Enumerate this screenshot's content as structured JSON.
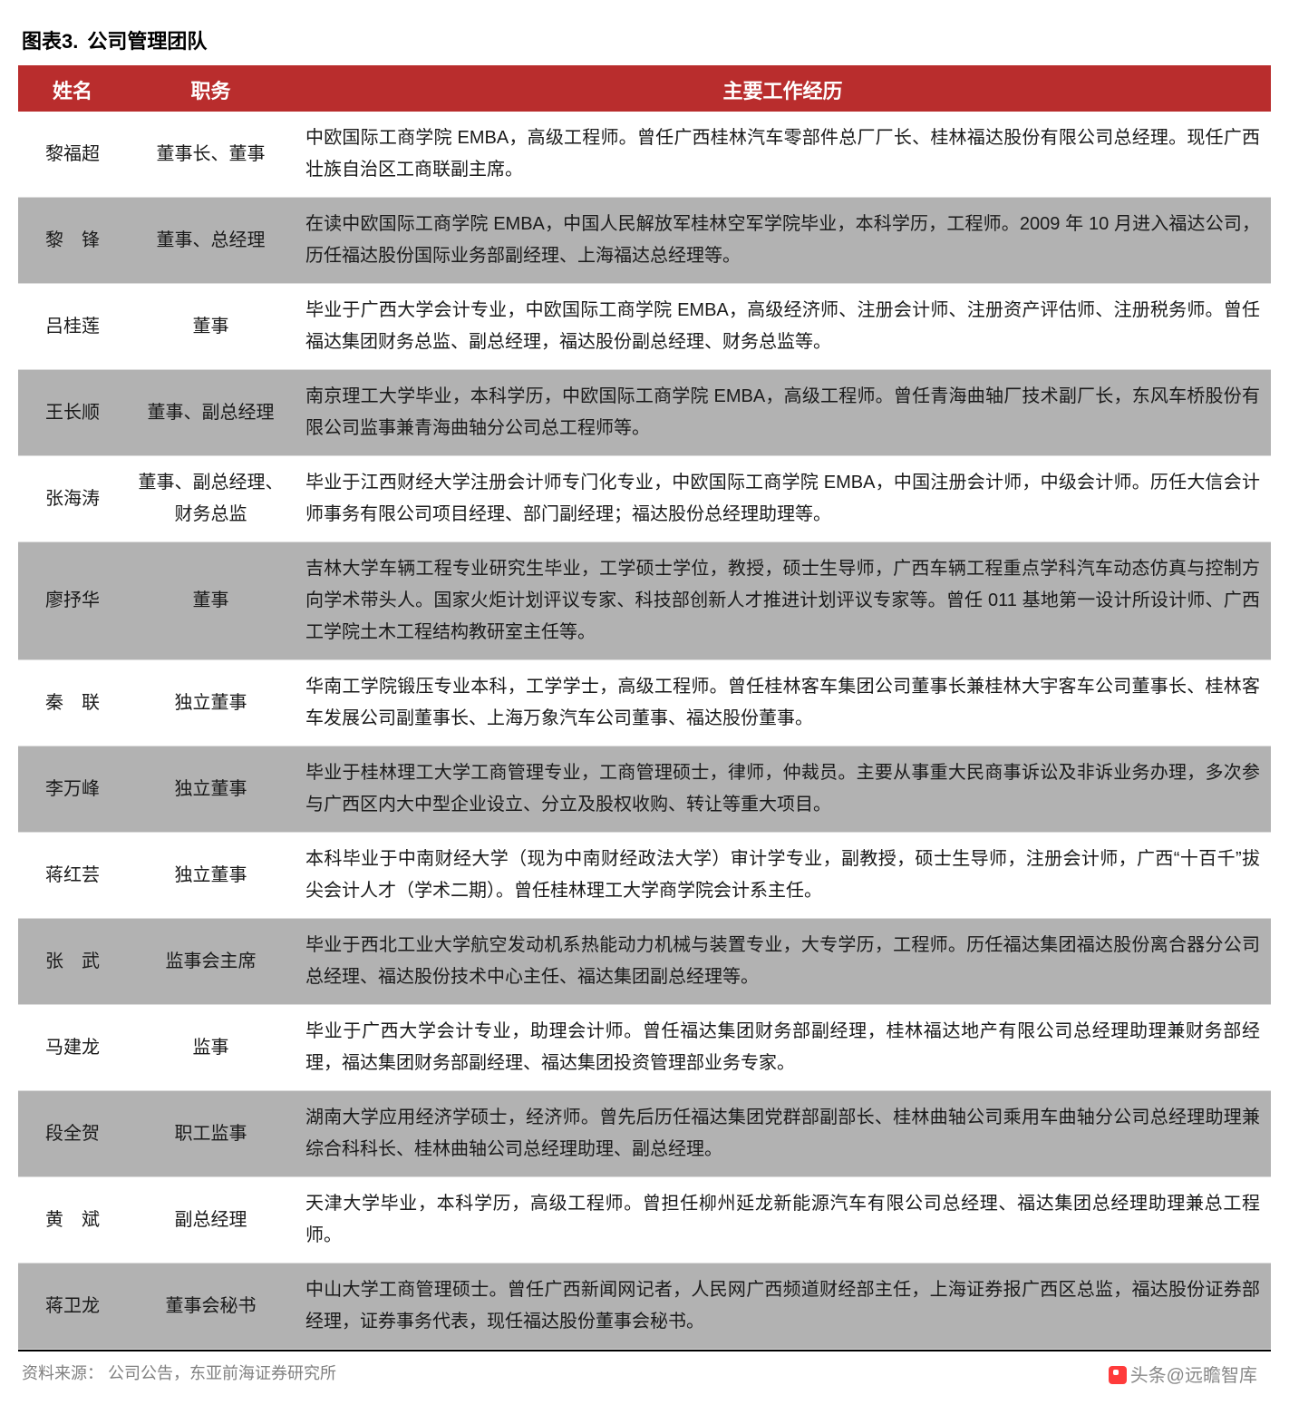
{
  "chart_label": "图表3.",
  "chart_title": "公司管理团队",
  "columns": {
    "name": "姓名",
    "position": "职务",
    "desc": "主要工作经历"
  },
  "rows": [
    {
      "shade": false,
      "name": "黎福超",
      "position": "董事长、董事",
      "desc": "中欧国际工商学院 EMBA，高级工程师。曾任广西桂林汽车零部件总厂厂长、桂林福达股份有限公司总经理。现任广西壮族自治区工商联副主席。"
    },
    {
      "shade": true,
      "name": "黎　锋",
      "position": "董事、总经理",
      "desc": "在读中欧国际工商学院 EMBA，中国人民解放军桂林空军学院毕业，本科学历，工程师。2009 年 10 月进入福达公司，历任福达股份国际业务部副经理、上海福达总经理等。"
    },
    {
      "shade": false,
      "name": "吕桂莲",
      "position": "董事",
      "desc": "毕业于广西大学会计专业，中欧国际工商学院 EMBA，高级经济师、注册会计师、注册资产评估师、注册税务师。曾任福达集团财务总监、副总经理，福达股份副总经理、财务总监等。"
    },
    {
      "shade": true,
      "name": "王长顺",
      "position": "董事、副总经理",
      "desc": "南京理工大学毕业，本科学历，中欧国际工商学院 EMBA，高级工程师。曾任青海曲轴厂技术副厂长，东风车桥股份有限公司监事兼青海曲轴分公司总工程师等。"
    },
    {
      "shade": false,
      "name": "张海涛",
      "position": "董事、副总经理、财务总监",
      "desc": "毕业于江西财经大学注册会计师专门化专业，中欧国际工商学院 EMBA，中国注册会计师，中级会计师。历任大信会计师事务有限公司项目经理、部门副经理；福达股份总经理助理等。"
    },
    {
      "shade": true,
      "name": "廖抒华",
      "position": "董事",
      "desc": "吉林大学车辆工程专业研究生毕业，工学硕士学位，教授，硕士生导师，广西车辆工程重点学科汽车动态仿真与控制方向学术带头人。国家火炬计划评议专家、科技部创新人才推进计划评议专家等。曾任 011 基地第一设计所设计师、广西工学院土木工程结构教研室主任等。"
    },
    {
      "shade": false,
      "name": "秦　联",
      "position": "独立董事",
      "desc": "华南工学院锻压专业本科，工学学士，高级工程师。曾任桂林客车集团公司董事长兼桂林大宇客车公司董事长、桂林客车发展公司副董事长、上海万象汽车公司董事、福达股份董事。"
    },
    {
      "shade": true,
      "name": "李万峰",
      "position": "独立董事",
      "desc": "毕业于桂林理工大学工商管理专业，工商管理硕士，律师，仲裁员。主要从事重大民商事诉讼及非诉业务办理，多次参与广西区内大中型企业设立、分立及股权收购、转让等重大项目。"
    },
    {
      "shade": false,
      "name": "蒋红芸",
      "position": "独立董事",
      "desc": "本科毕业于中南财经大学（现为中南财经政法大学）审计学专业，副教授，硕士生导师，注册会计师，广西“十百千”拔尖会计人才（学术二期）。曾任桂林理工大学商学院会计系主任。"
    },
    {
      "shade": true,
      "name": "张　武",
      "position": "监事会主席",
      "desc": "毕业于西北工业大学航空发动机系热能动力机械与装置专业，大专学历，工程师。历任福达集团福达股份离合器分公司总经理、福达股份技术中心主任、福达集团副总经理等。"
    },
    {
      "shade": false,
      "name": "马建龙",
      "position": "监事",
      "desc": "毕业于广西大学会计专业，助理会计师。曾任福达集团财务部副经理，桂林福达地产有限公司总经理助理兼财务部经理，福达集团财务部副经理、福达集团投资管理部业务专家。"
    },
    {
      "shade": true,
      "name": "段全贺",
      "position": "职工监事",
      "desc": "湖南大学应用经济学硕士，经济师。曾先后历任福达集团党群部副部长、桂林曲轴公司乘用车曲轴分公司总经理助理兼综合科科长、桂林曲轴公司总经理助理、副总经理。"
    },
    {
      "shade": false,
      "name": "黄　斌",
      "position": "副总经理",
      "desc": "天津大学毕业，本科学历，高级工程师。曾担任柳州延龙新能源汽车有限公司总经理、福达集团总经理助理兼总工程师。"
    },
    {
      "shade": true,
      "name": "蒋卫龙",
      "position": "董事会秘书",
      "desc": "中山大学工商管理硕士。曾任广西新闻网记者，人民网广西频道财经部主任，上海证券报广西区总监，福达股份证券部经理，证券事务代表，现任福达股份董事会秘书。"
    }
  ],
  "source": "资料来源：  公司公告，东亚前海证券研究所",
  "watermark": "头条@远瞻智库"
}
